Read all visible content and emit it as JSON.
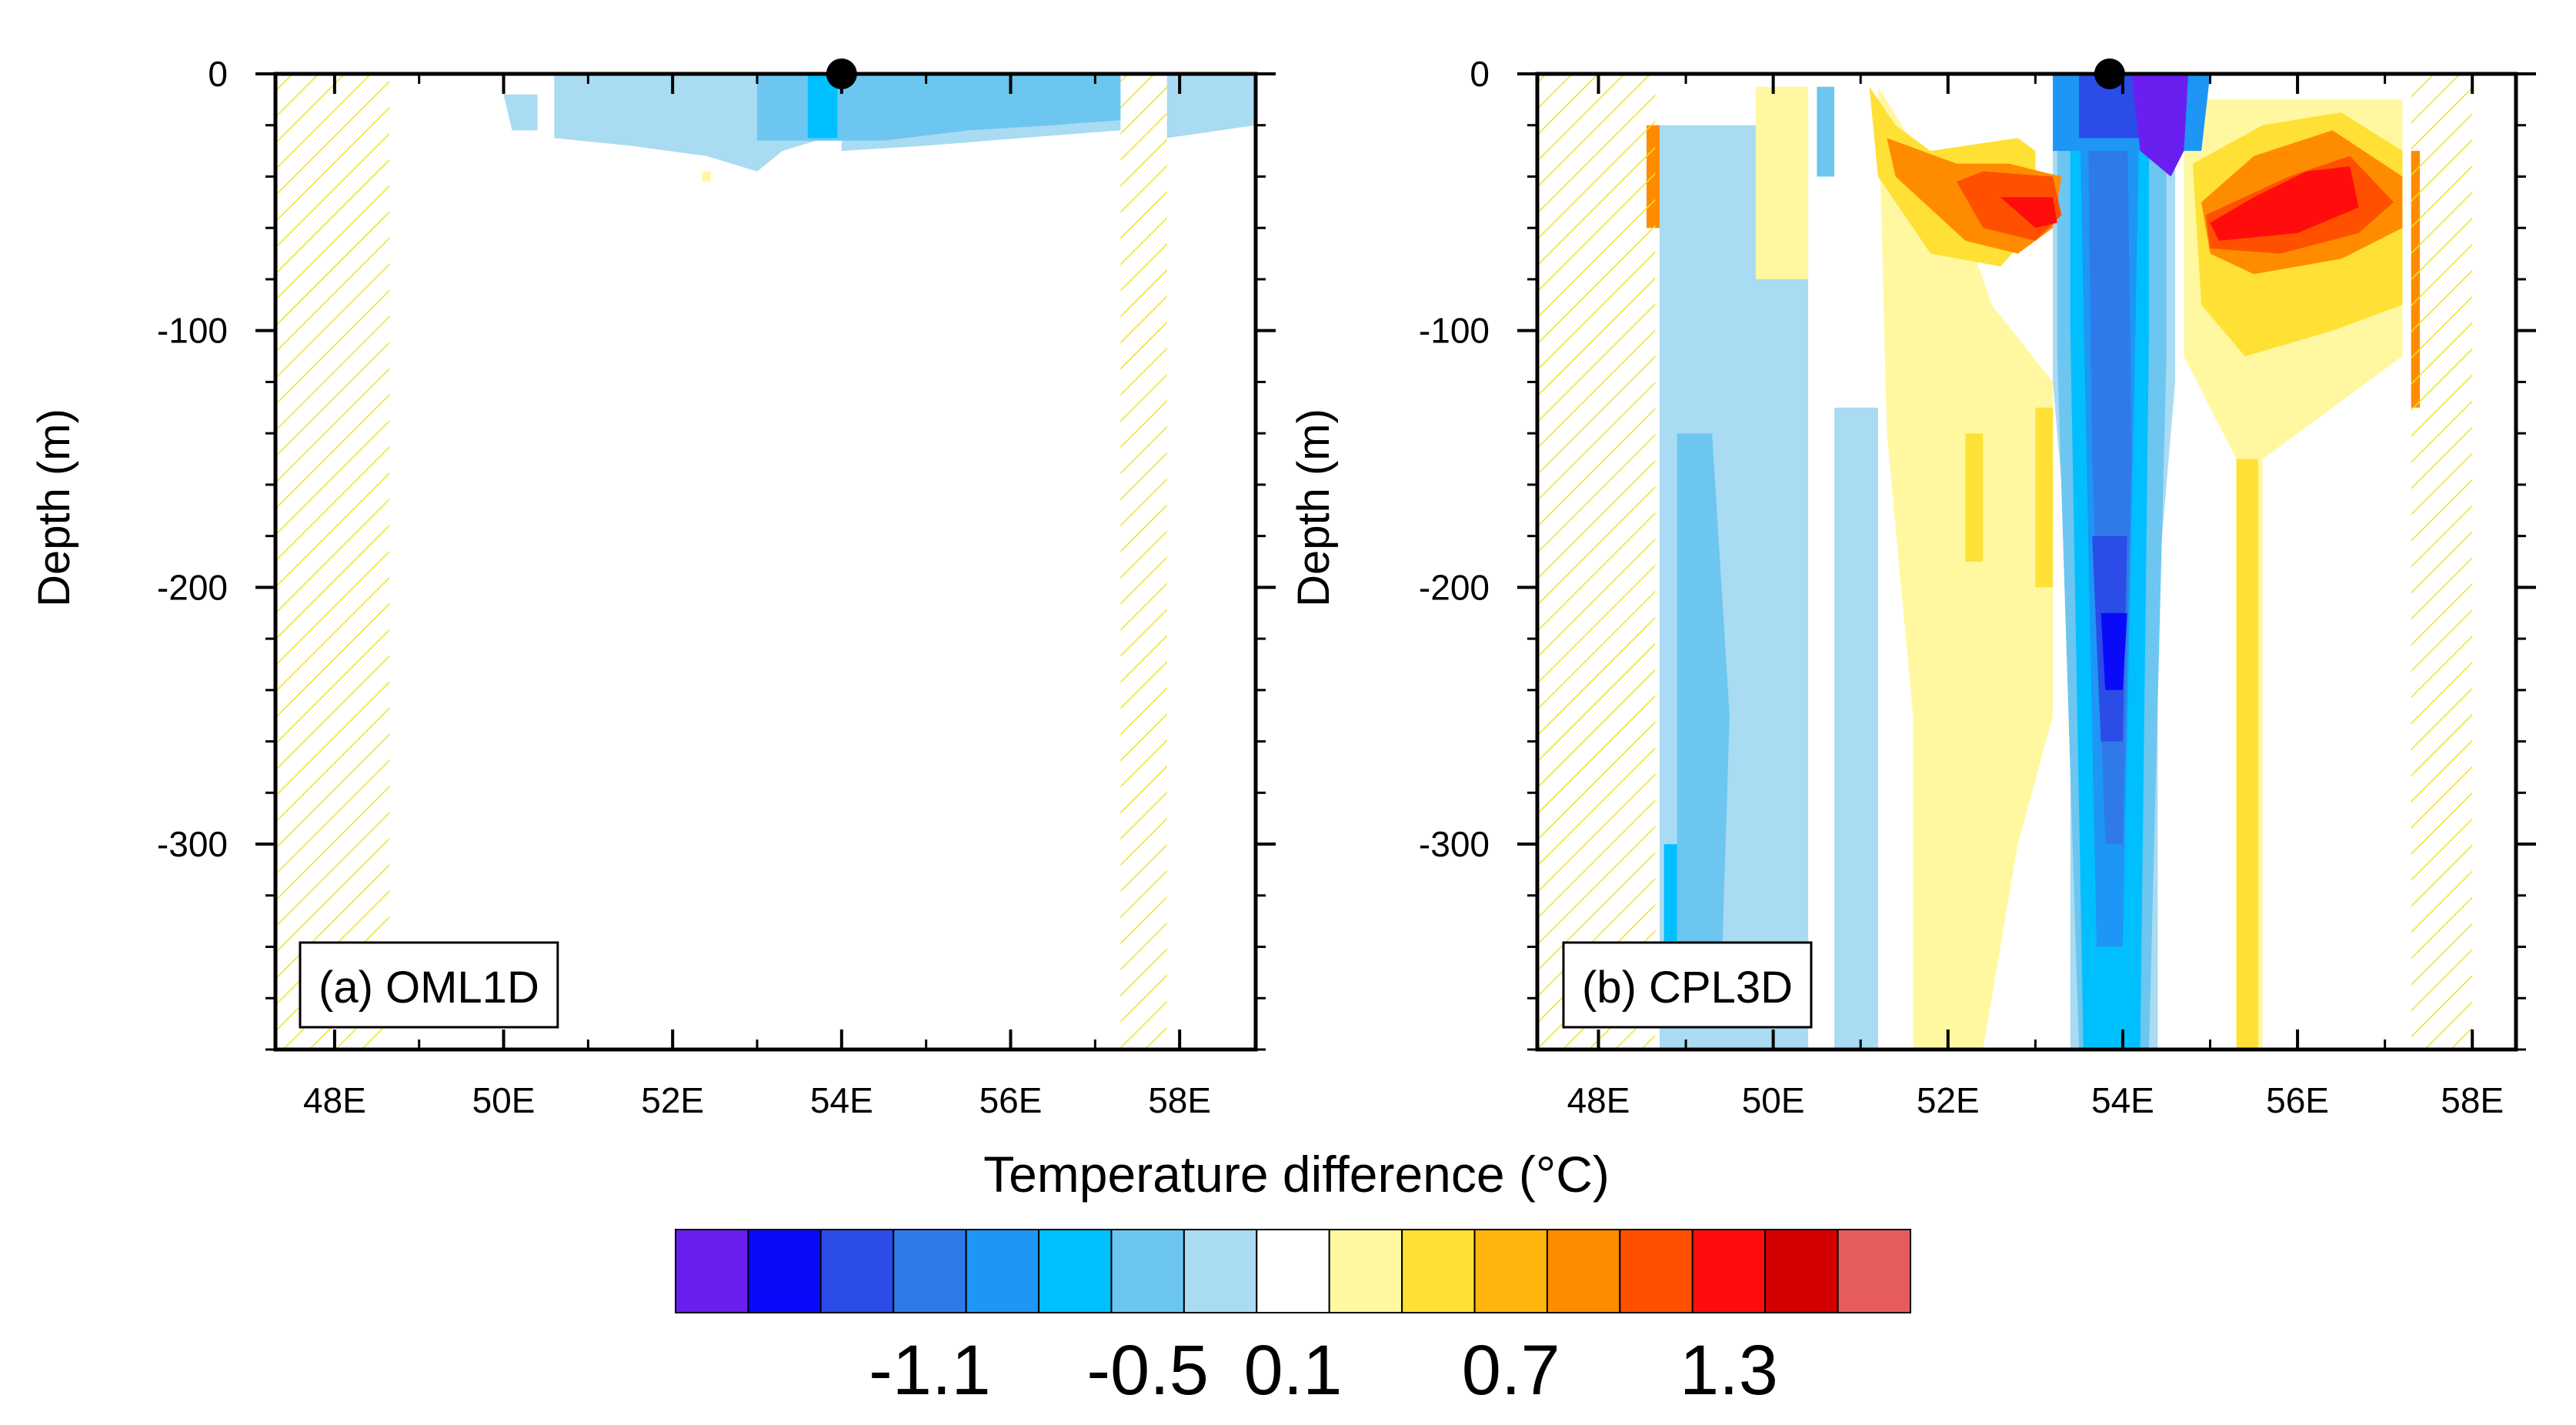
{
  "chart_data": [
    {
      "type": "contour",
      "panel_label": "(a) OML1D",
      "xlabel": "",
      "ylabel": "Depth (m)",
      "xlim": [
        47.3,
        58.9
      ],
      "ylim": [
        -380,
        0
      ],
      "x_tick_labels": [
        "48E",
        "50E",
        "52E",
        "54E",
        "56E",
        "58E"
      ],
      "x_tick_values": [
        48,
        50,
        52,
        54,
        56,
        58
      ],
      "y_tick_labels": [
        "0",
        "-100",
        "-200",
        "-300"
      ],
      "y_tick_values": [
        0,
        -100,
        -200,
        -300
      ],
      "marker": {
        "lon": 54,
        "depth": 0
      },
      "hatched_land_lon_ranges": [
        [
          47.3,
          48.65
        ],
        [
          57.3,
          57.85
        ]
      ],
      "fields": [
        {
          "level": -0.3,
          "lon": [
            50.0,
            50.1,
            50.4,
            50.4
          ],
          "depth": [
            -8,
            -22,
            -22,
            -8
          ]
        },
        {
          "level": -0.3,
          "lon": [
            50.6,
            50.6,
            51.5,
            52.4,
            53.0,
            53.3,
            53.8,
            54.0,
            54.0
          ],
          "depth": [
            0,
            -25,
            -28,
            -32,
            -38,
            -30,
            -25,
            -20,
            0
          ]
        },
        {
          "level": -0.3,
          "lon": [
            54.0,
            54.0,
            55.0,
            56.5,
            57.3,
            57.3
          ],
          "depth": [
            0,
            -30,
            -28,
            -24,
            -22,
            0
          ]
        },
        {
          "level": -0.3,
          "lon": [
            57.85,
            57.85,
            58.9,
            58.9
          ],
          "depth": [
            0,
            -25,
            -20,
            0
          ]
        },
        {
          "level": -0.5,
          "lon": [
            53.0,
            53.0,
            54.5,
            55.5,
            56.5,
            57.3,
            57.3
          ],
          "depth": [
            0,
            -26,
            -26,
            -22,
            -20,
            -18,
            0
          ]
        },
        {
          "level": -0.7,
          "lon": [
            53.6,
            53.6,
            53.95,
            53.95
          ],
          "depth": [
            0,
            -25,
            -25,
            0
          ]
        },
        {
          "level": 0.3,
          "lon": [
            52.35,
            52.35,
            52.45,
            52.45
          ],
          "depth": [
            -38,
            -42,
            -42,
            -38
          ]
        }
      ]
    },
    {
      "type": "contour",
      "panel_label": "(b) CPL3D",
      "xlabel": "",
      "ylabel": "Depth (m)",
      "xlim": [
        47.3,
        58.5
      ],
      "ylim": [
        -380,
        0
      ],
      "x_tick_labels": [
        "48E",
        "50E",
        "52E",
        "54E",
        "56E",
        "58E"
      ],
      "x_tick_values": [
        48,
        50,
        52,
        54,
        56,
        58
      ],
      "y_tick_labels": [
        "0",
        "-100",
        "-200",
        "-300"
      ],
      "y_tick_values": [
        0,
        -100,
        -200,
        -300
      ],
      "marker": {
        "lon": 53.85,
        "depth": 0
      },
      "hatched_land_lon_ranges": [
        [
          47.3,
          48.65
        ],
        [
          57.3,
          58.0
        ]
      ],
      "fields": [
        {
          "level": -0.3,
          "lon": [
            48.7,
            48.7,
            50.4,
            50.4
          ],
          "depth": [
            -20,
            -380,
            -380,
            -20
          ]
        },
        {
          "level": -0.3,
          "lon": [
            50.7,
            50.7,
            51.2,
            51.2
          ],
          "depth": [
            -130,
            -380,
            -380,
            -130
          ]
        },
        {
          "level": -0.5,
          "lon": [
            48.9,
            48.9,
            49.4,
            49.5,
            49.3
          ],
          "depth": [
            -140,
            -360,
            -360,
            -250,
            -140
          ]
        },
        {
          "level": -0.5,
          "lon": [
            50.5,
            50.5,
            50.7,
            50.7
          ],
          "depth": [
            -5,
            -40,
            -40,
            -5
          ]
        },
        {
          "level": -0.7,
          "lon": [
            48.75,
            48.75,
            48.9,
            48.9
          ],
          "depth": [
            -300,
            -360,
            -360,
            -300
          ]
        },
        {
          "level": 0.3,
          "lon": [
            49.8,
            49.8,
            50.4,
            50.4
          ],
          "depth": [
            -5,
            -80,
            -80,
            -5
          ]
        },
        {
          "level": 0.3,
          "lon": [
            51.2,
            51.3,
            51.6,
            51.6,
            52.4,
            52.8,
            53.2,
            53.2,
            52.5,
            52.2
          ],
          "depth": [
            -5,
            -140,
            -250,
            -380,
            -380,
            -300,
            -250,
            -120,
            -90,
            -60
          ]
        },
        {
          "level": 0.3,
          "lon": [
            54.7,
            54.7,
            55.3,
            55.3,
            55.6,
            55.6,
            57.2,
            57.2
          ],
          "depth": [
            -10,
            -110,
            -150,
            -380,
            -380,
            -150,
            -110,
            -10
          ]
        },
        {
          "level": -0.3,
          "lon": [
            53.2,
            53.2,
            53.4,
            53.4,
            54.4,
            54.4,
            54.6,
            54.6
          ],
          "depth": [
            0,
            -120,
            -200,
            -380,
            -380,
            -200,
            -120,
            0
          ]
        },
        {
          "level": -0.5,
          "lon": [
            53.25,
            53.25,
            53.5,
            54.3,
            54.5,
            54.5
          ],
          "depth": [
            0,
            -110,
            -380,
            -380,
            -110,
            0
          ]
        },
        {
          "level": -0.7,
          "lon": [
            53.4,
            53.4,
            53.55,
            54.2,
            54.3,
            54.3
          ],
          "depth": [
            0,
            -100,
            -380,
            -380,
            -100,
            0
          ]
        },
        {
          "level": -0.9,
          "lon": [
            53.5,
            53.55,
            53.7,
            54.0,
            54.15,
            54.2
          ],
          "depth": [
            0,
            -90,
            -340,
            -340,
            -90,
            0
          ]
        },
        {
          "level": -1.1,
          "lon": [
            53.6,
            53.65,
            53.8,
            54.0,
            54.1,
            54.05
          ],
          "depth": [
            -10,
            -150,
            -300,
            -300,
            -150,
            -10
          ]
        },
        {
          "level": -1.3,
          "lon": [
            53.65,
            53.75,
            54.0,
            54.05
          ],
          "depth": [
            -180,
            -260,
            -260,
            -180
          ]
        },
        {
          "level": -1.5,
          "lon": [
            53.75,
            53.8,
            54.0,
            54.05
          ],
          "depth": [
            -210,
            -240,
            -240,
            -210
          ]
        },
        {
          "level": -0.9,
          "lon": [
            53.2,
            53.2,
            54.9,
            55.0
          ],
          "depth": [
            0,
            -30,
            -30,
            0
          ]
        },
        {
          "level": -1.3,
          "lon": [
            53.5,
            53.5,
            54.3,
            54.3
          ],
          "depth": [
            0,
            -25,
            -25,
            0
          ]
        },
        {
          "level": -1.7,
          "lon": [
            54.1,
            54.2,
            54.55,
            54.7,
            54.75
          ],
          "depth": [
            0,
            -30,
            -40,
            -30,
            0
          ]
        },
        {
          "level": 0.5,
          "lon": [
            51.1,
            51.2,
            51.8,
            52.6,
            53.0,
            53.0,
            52.8,
            52.2,
            51.8,
            51.4
          ],
          "depth": [
            -5,
            -40,
            -70,
            -75,
            -60,
            -30,
            -25,
            -28,
            -30,
            -20
          ]
        },
        {
          "level": 0.9,
          "lon": [
            51.3,
            51.4,
            52.2,
            52.8,
            53.2,
            53.3,
            52.7,
            52.1
          ],
          "depth": [
            -25,
            -40,
            -65,
            -70,
            -60,
            -40,
            -35,
            -35
          ]
        },
        {
          "level": 1.1,
          "lon": [
            52.1,
            52.4,
            53.0,
            53.3,
            53.2,
            52.4
          ],
          "depth": [
            -42,
            -60,
            -65,
            -55,
            -40,
            -38
          ]
        },
        {
          "level": 1.3,
          "lon": [
            52.6,
            53.0,
            53.25,
            53.2
          ],
          "depth": [
            -48,
            -60,
            -58,
            -48
          ]
        },
        {
          "level": 0.5,
          "lon": [
            54.8,
            54.9,
            55.4,
            56.4,
            57.2,
            57.2,
            56.5,
            55.6
          ],
          "depth": [
            -35,
            -90,
            -110,
            -100,
            -90,
            -30,
            -15,
            -20
          ]
        },
        {
          "level": 0.9,
          "lon": [
            54.9,
            55.0,
            55.5,
            56.5,
            57.2,
            57.2,
            56.4,
            55.5
          ],
          "depth": [
            -50,
            -70,
            -78,
            -72,
            -60,
            -40,
            -22,
            -32
          ]
        },
        {
          "level": 1.1,
          "lon": [
            54.95,
            55.0,
            55.8,
            56.7,
            57.1,
            56.6,
            55.9
          ],
          "depth": [
            -55,
            -68,
            -70,
            -62,
            -50,
            -32,
            -40
          ]
        },
        {
          "level": 1.3,
          "lon": [
            55.0,
            55.1,
            56.0,
            56.7,
            56.6,
            56.1,
            55.5
          ],
          "depth": [
            -58,
            -65,
            -62,
            -52,
            -36,
            -38,
            -48
          ]
        },
        {
          "level": 0.5,
          "lon": [
            52.2,
            52.2,
            52.4,
            52.4
          ],
          "depth": [
            -140,
            -190,
            -190,
            -140
          ]
        },
        {
          "level": 0.5,
          "lon": [
            53.0,
            53.0,
            53.2,
            53.2
          ],
          "depth": [
            -130,
            -200,
            -200,
            -130
          ]
        },
        {
          "level": 0.5,
          "lon": [
            55.3,
            55.3,
            55.55,
            55.55
          ],
          "depth": [
            -150,
            -380,
            -380,
            -150
          ]
        },
        {
          "level": 0.9,
          "lon": [
            48.55,
            48.55,
            48.7,
            48.7
          ],
          "depth": [
            -20,
            -60,
            -60,
            -20
          ]
        },
        {
          "level": 0.9,
          "lon": [
            57.3,
            57.3,
            57.4,
            57.4
          ],
          "depth": [
            -30,
            -130,
            -130,
            -30
          ]
        }
      ]
    }
  ],
  "colorbar": {
    "title": "Temperature difference (°C)",
    "levels": [
      -1.7,
      -1.5,
      -1.3,
      -1.1,
      -0.9,
      -0.7,
      -0.5,
      -0.3,
      0.1,
      0.3,
      0.5,
      0.7,
      0.9,
      1.1,
      1.3,
      1.5,
      1.7
    ],
    "colors": [
      "#6a1ff0",
      "#0a0afa",
      "#2b4ce6",
      "#2f7ae8",
      "#1d96f5",
      "#00bfff",
      "#6cc6f0",
      "#a9dbf2",
      "#ffffff",
      "#fff8a0",
      "#ffe035",
      "#ffb50e",
      "#ff8c00",
      "#ff5000",
      "#ff0d0d",
      "#d40000",
      "#e65c5c"
    ],
    "tick_labels": [
      "-1.1",
      "-0.5",
      "0.1",
      "0.7",
      "1.3"
    ],
    "tick_values": [
      -1.1,
      -0.5,
      0.1,
      0.7,
      1.3
    ]
  }
}
